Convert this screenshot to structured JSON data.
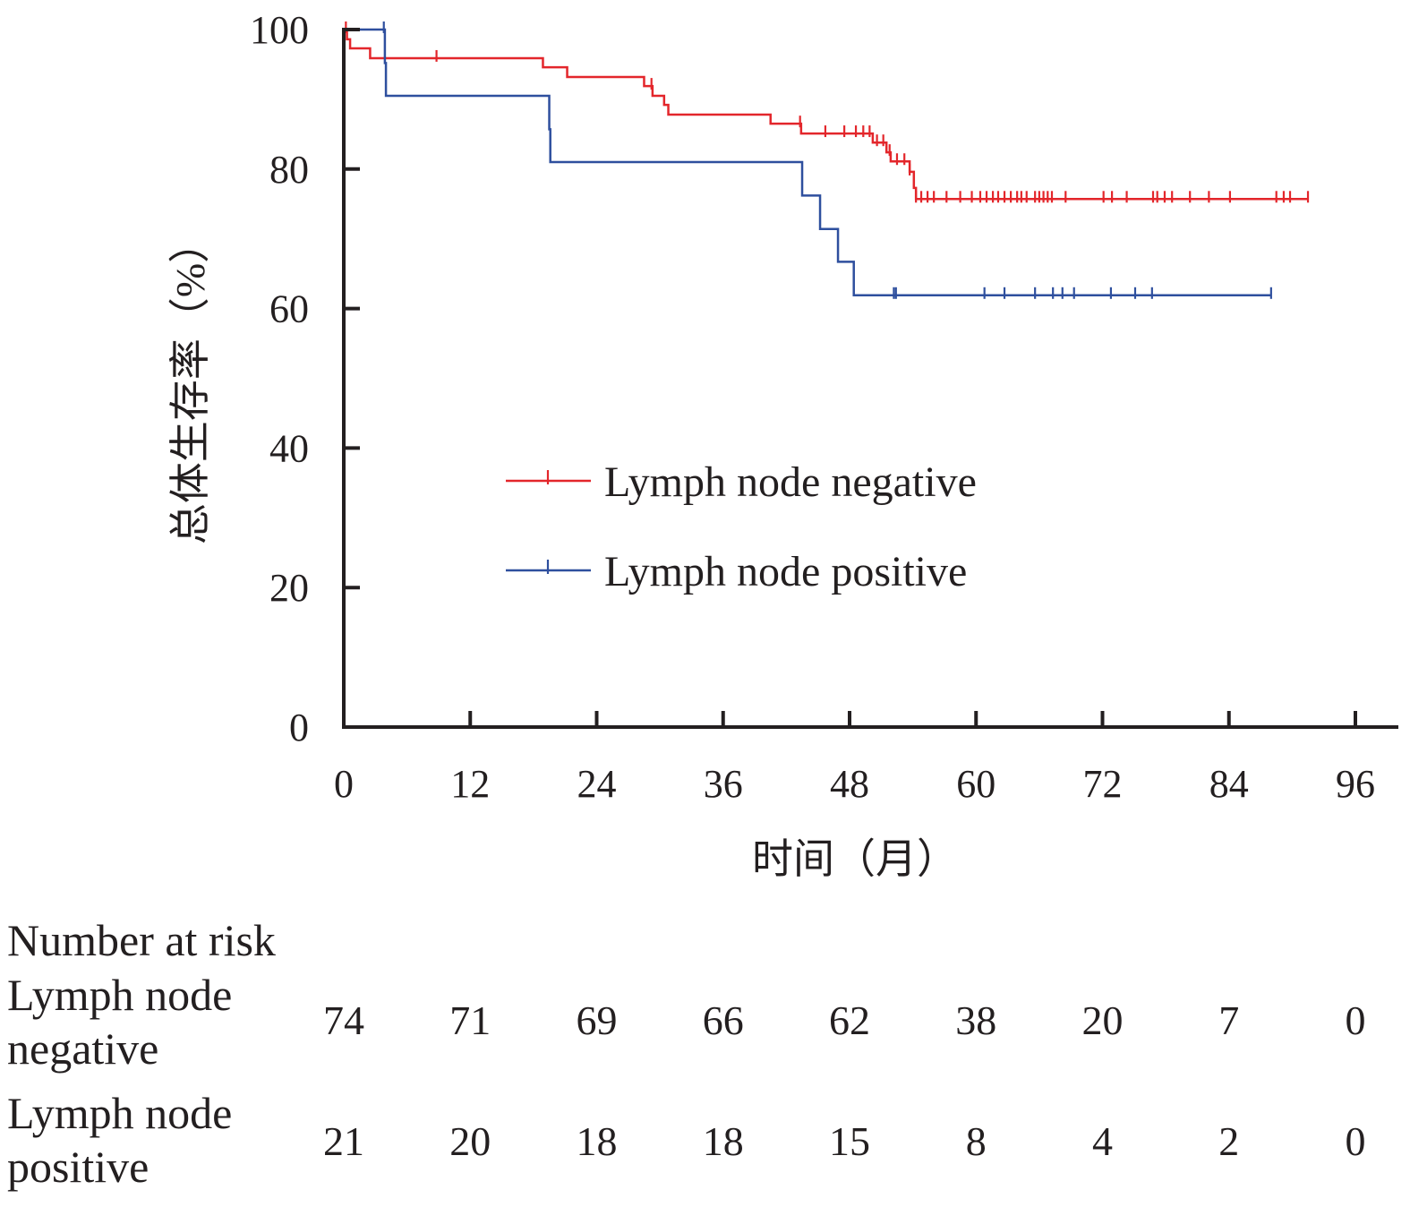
{
  "chart_data": {
    "type": "line",
    "subtype": "kaplan-meier",
    "xlabel": "时间（月）",
    "ylabel": "总体生存率（%）",
    "xlim": [
      0,
      96
    ],
    "ylim": [
      0,
      100
    ],
    "xticks": [
      0,
      12,
      24,
      36,
      48,
      60,
      72,
      84,
      96
    ],
    "yticks": [
      0,
      20,
      40,
      60,
      80,
      100
    ],
    "grid": false,
    "legend_position": "center",
    "series": [
      {
        "name": "Lymph node negative",
        "color": "#e3262b",
        "steps": [
          [
            0,
            100
          ],
          [
            0.3,
            98.6
          ],
          [
            0.6,
            97.3
          ],
          [
            2.5,
            95.9
          ],
          [
            18.9,
            94.6
          ],
          [
            21.2,
            93.2
          ],
          [
            28.5,
            91.9
          ],
          [
            29.3,
            90.5
          ],
          [
            30.4,
            89.2
          ],
          [
            30.8,
            87.8
          ],
          [
            40.5,
            86.5
          ],
          [
            43.4,
            85.1
          ],
          [
            50.2,
            83.8
          ],
          [
            51.5,
            82.4
          ],
          [
            51.9,
            81.1
          ],
          [
            53.7,
            79.6
          ],
          [
            54.1,
            77.3
          ],
          [
            54.3,
            75.7
          ],
          [
            91.5,
            75.7
          ]
        ],
        "censored": [
          0.2,
          8.8,
          29.2,
          43.3,
          45.7,
          47.5,
          48.6,
          49.3,
          49.9,
          50.6,
          51.2,
          51.8,
          52.5,
          53.2,
          53.7,
          54.3,
          54.8,
          55.4,
          56.0,
          57.2,
          58.5,
          59.6,
          60.4,
          61.0,
          61.6,
          62.1,
          62.7,
          63.3,
          63.9,
          64.3,
          64.8,
          65.6,
          66.0,
          66.4,
          66.8,
          67.2,
          68.5,
          72.1,
          72.9,
          74.3,
          76.8,
          77.2,
          77.9,
          78.6,
          80.3,
          82.1,
          84.1,
          88.5,
          89.2,
          89.8,
          91.5
        ]
      },
      {
        "name": "Lymph node positive",
        "color": "#2e4f9e",
        "steps": [
          [
            0,
            100
          ],
          [
            3.9,
            95.2
          ],
          [
            4.0,
            90.5
          ],
          [
            19.5,
            85.7
          ],
          [
            19.6,
            81.0
          ],
          [
            43.5,
            76.2
          ],
          [
            45.2,
            71.4
          ],
          [
            46.9,
            66.7
          ],
          [
            48.4,
            61.9
          ],
          [
            88.0,
            61.9
          ]
        ],
        "censored": [
          3.8,
          52.2,
          52.4,
          60.8,
          62.7,
          65.6,
          67.3,
          68.2,
          69.3,
          72.8,
          75.1,
          76.7,
          88.0
        ]
      }
    ],
    "risk_table": {
      "title": "Number at risk",
      "times": [
        0,
        12,
        24,
        36,
        48,
        60,
        72,
        84,
        96
      ],
      "rows": [
        {
          "label_line1": "Lymph node",
          "label_line2": "negative",
          "values": [
            "74",
            "71",
            "69",
            "66",
            "62",
            "38",
            "20",
            "7",
            "0"
          ]
        },
        {
          "label_line1": "Lymph node",
          "label_line2": "positive",
          "values": [
            "21",
            "20",
            "18",
            "18",
            "15",
            "8",
            "4",
            "2",
            "0"
          ]
        }
      ]
    }
  }
}
